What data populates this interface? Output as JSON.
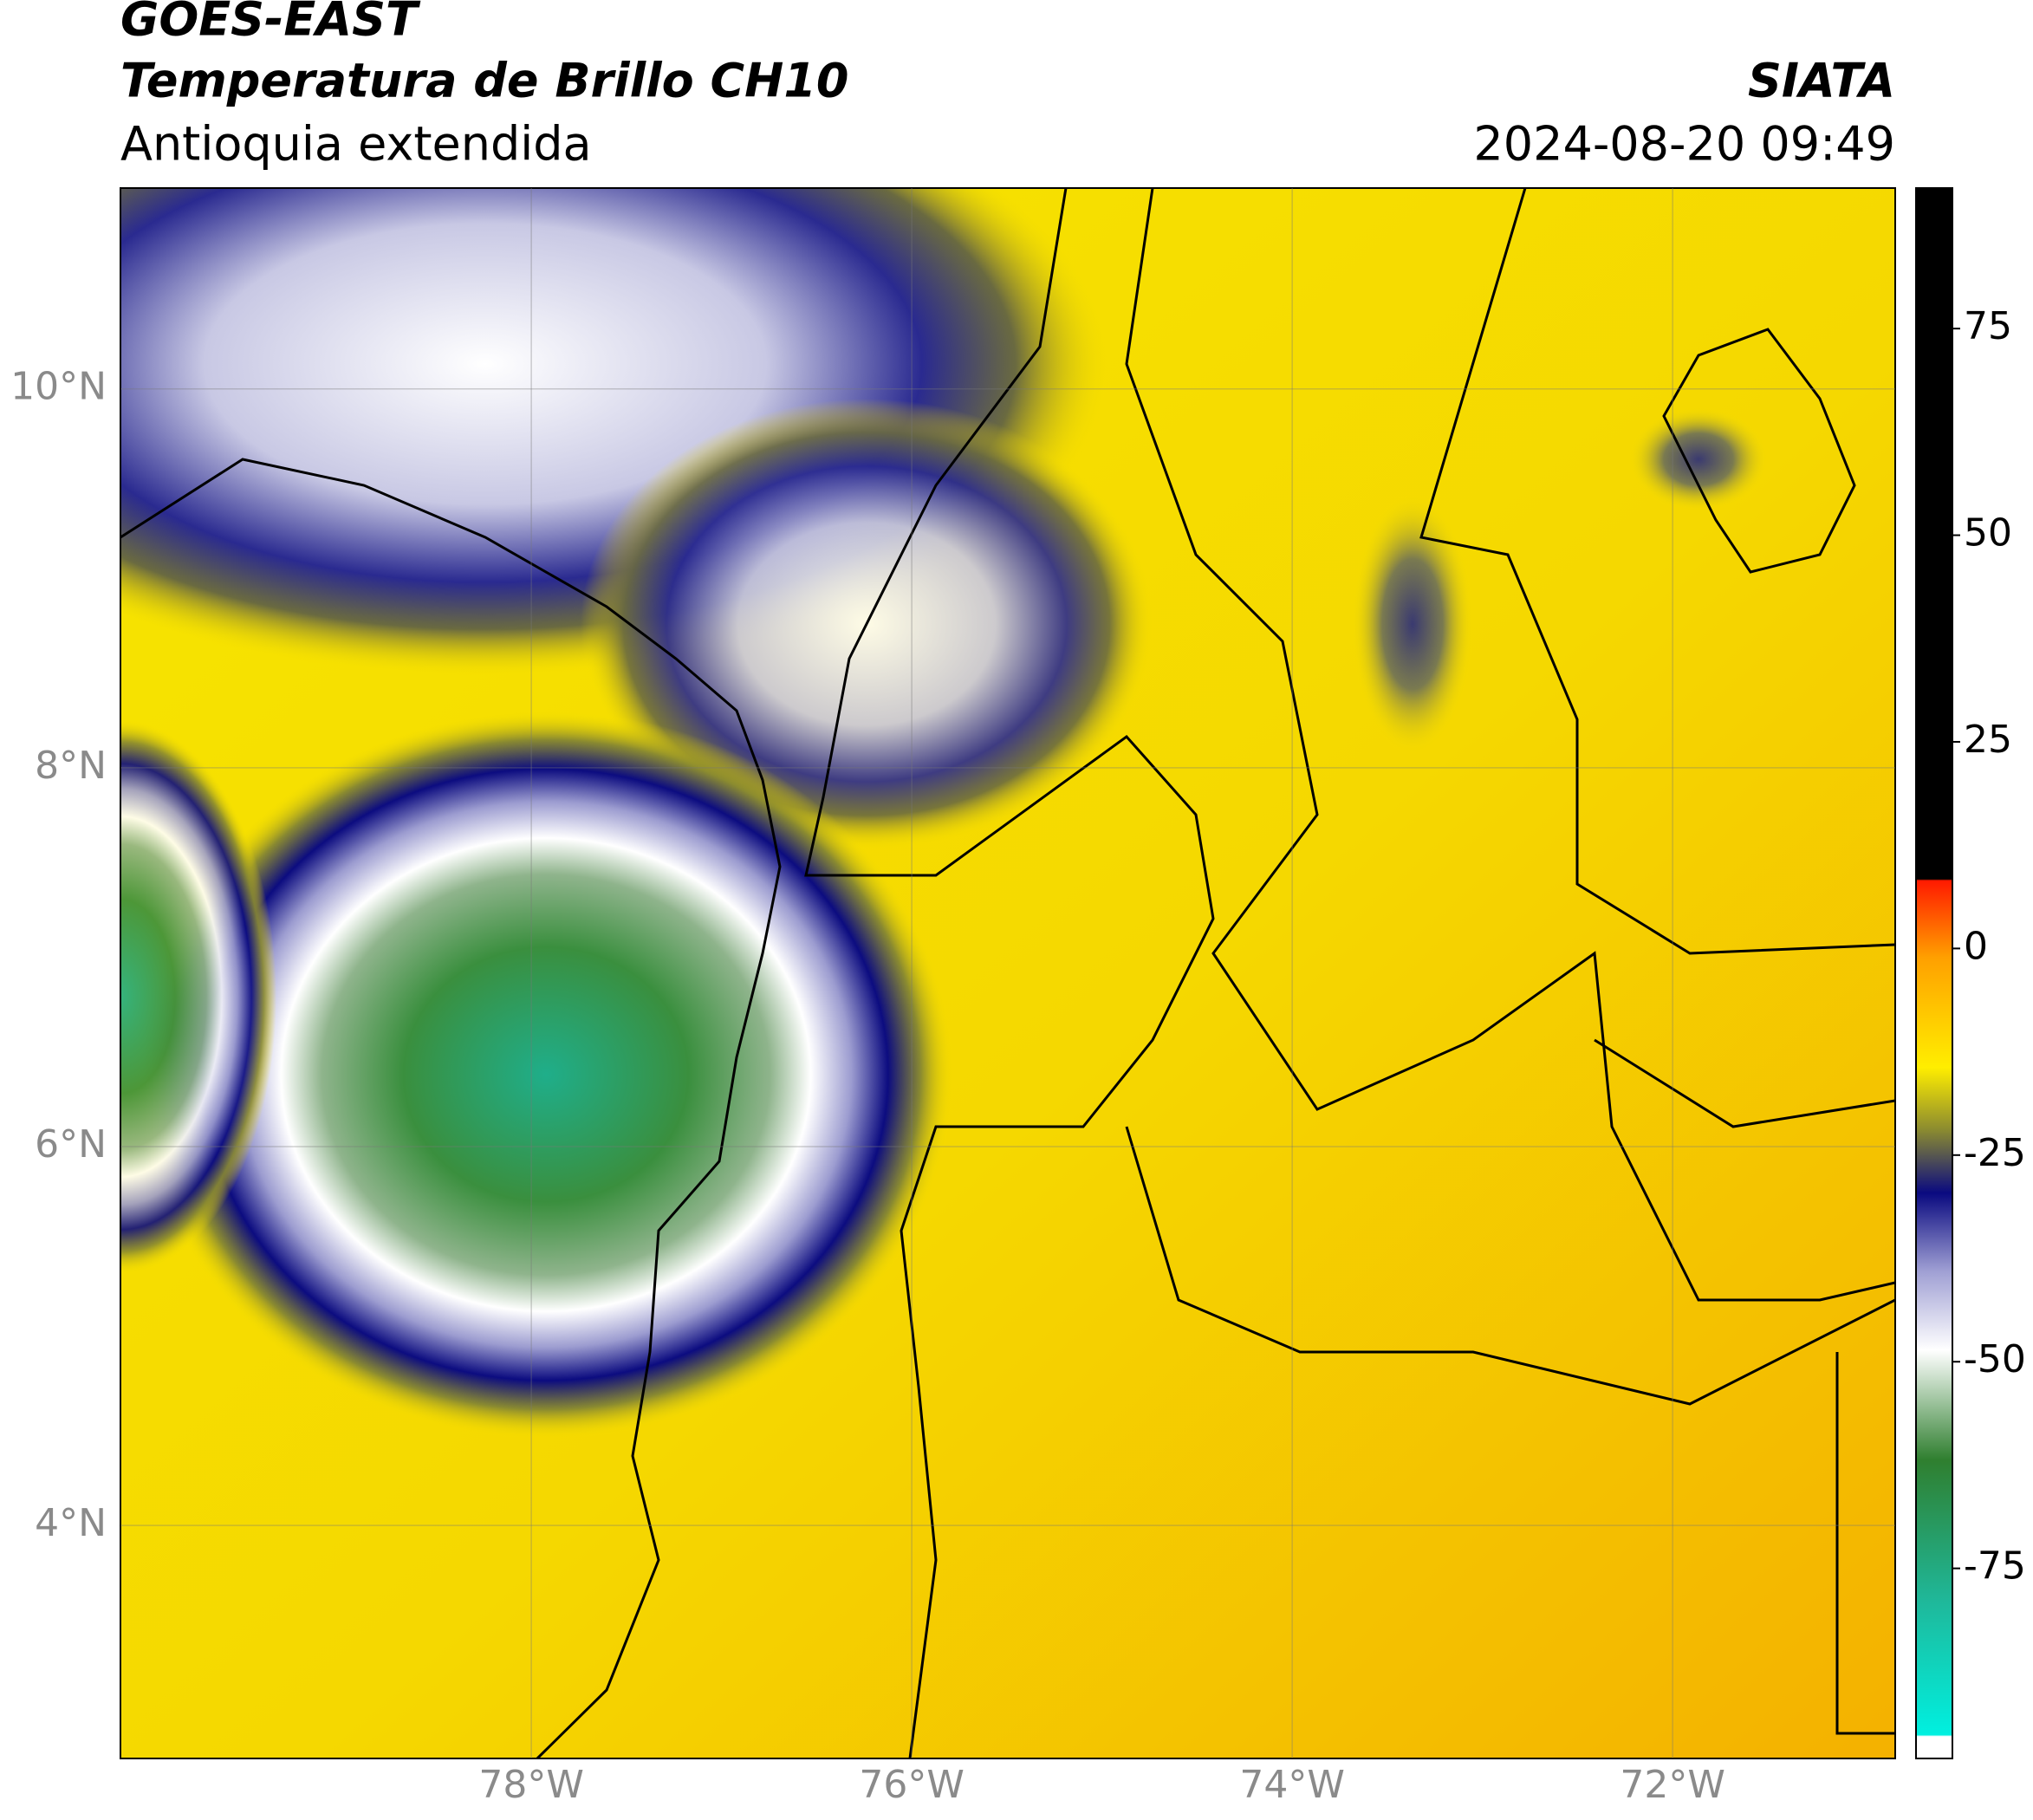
{
  "header": {
    "title": "GOES-EAST",
    "subtitle": "Temperatura de Brillo CH10",
    "region": "Antioquia extendida",
    "source": "SIATA",
    "datetime": "2024-08-20 09:49"
  },
  "map": {
    "lonlim": [
      -80.16,
      -70.83
    ],
    "latlim": [
      2.77,
      11.06
    ],
    "grid": true,
    "lon_ticks": [
      {
        "value": -78,
        "label": "78°W"
      },
      {
        "value": -76,
        "label": "76°W"
      },
      {
        "value": -74,
        "label": "74°W"
      },
      {
        "value": -72,
        "label": "72°W"
      }
    ],
    "lat_ticks": [
      {
        "value": 10,
        "label": "10°N"
      },
      {
        "value": 8,
        "label": "8°N"
      },
      {
        "value": 6,
        "label": "6°N"
      },
      {
        "value": 4,
        "label": "4°N"
      }
    ]
  },
  "colorbar": {
    "lim": [
      -98,
      92
    ],
    "ticks": [
      75,
      50,
      25,
      0,
      -25,
      -50,
      -75
    ]
  }
}
